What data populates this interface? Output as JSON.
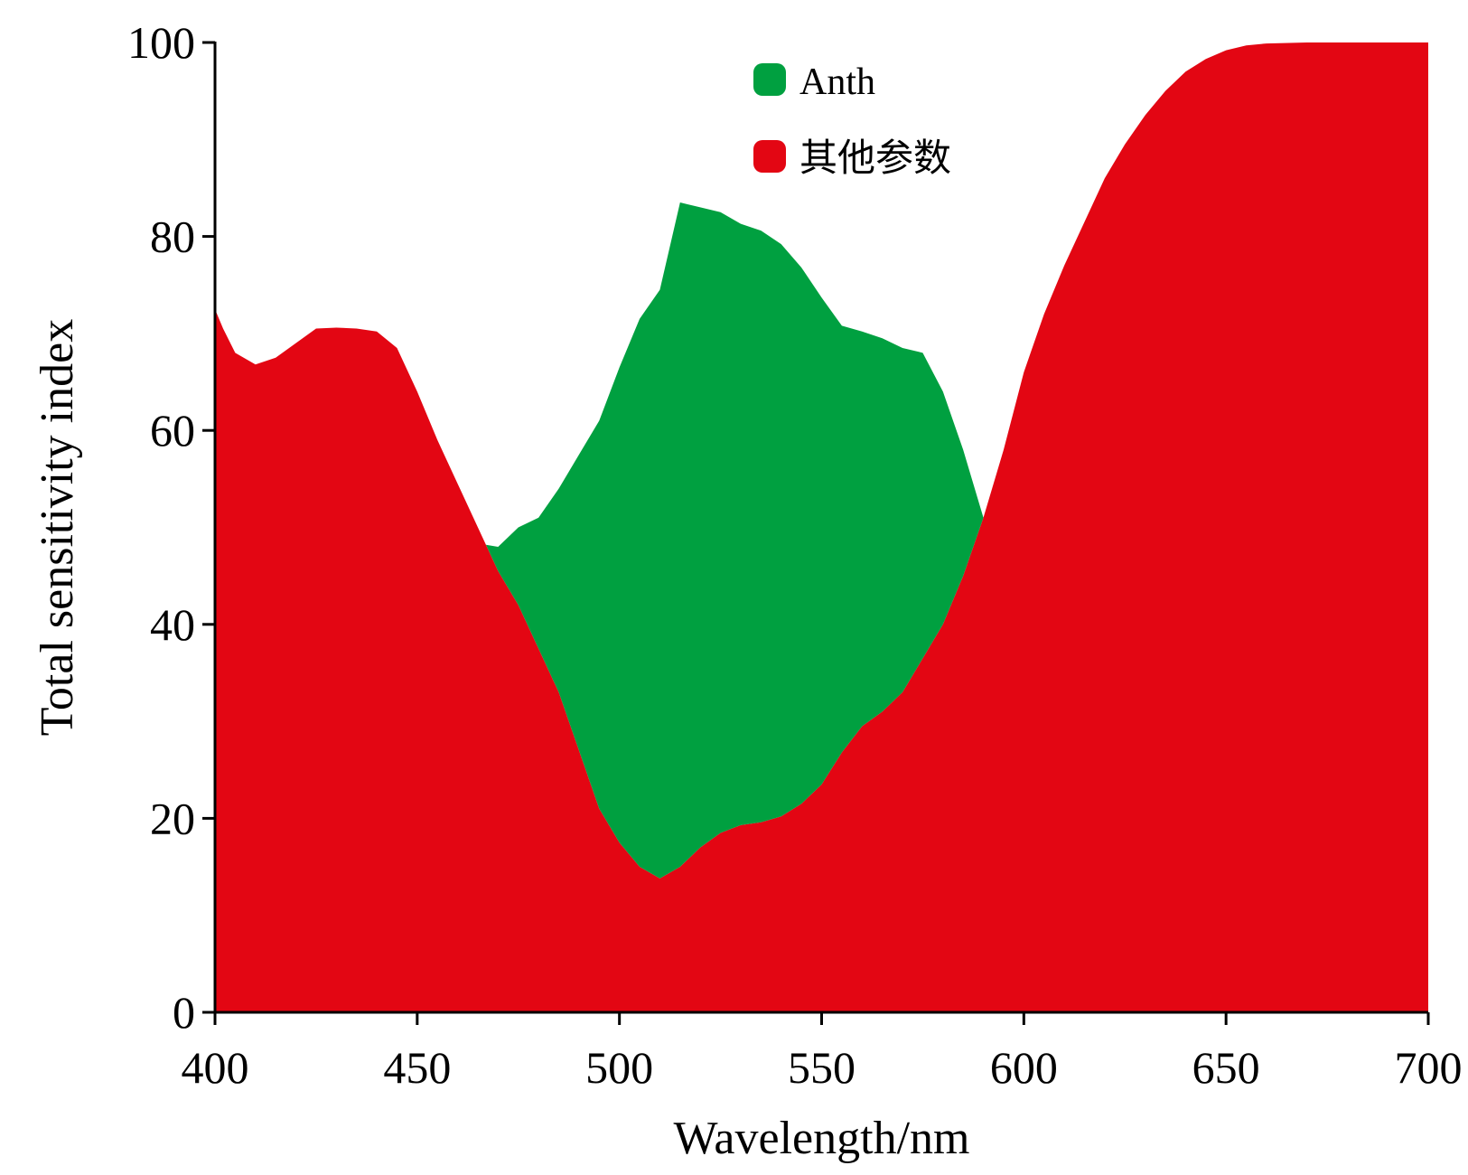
{
  "chart_data": {
    "type": "area",
    "xlabel": "Wavelength/nm",
    "ylabel": "Total sensitivity index",
    "xlim": [
      400,
      700
    ],
    "ylim": [
      0,
      100
    ],
    "x_ticks": [
      "400",
      "450",
      "500",
      "550",
      "600",
      "650",
      "700"
    ],
    "y_ticks": [
      "0",
      "20",
      "40",
      "60",
      "80",
      "100"
    ],
    "legend_position": "top-center",
    "stacked": true,
    "series": [
      {
        "name": "其他参数",
        "color": "#e30613",
        "points": [
          [
            400,
            72.5
          ],
          [
            402,
            70.5
          ],
          [
            405,
            68
          ],
          [
            410,
            66.8
          ],
          [
            415,
            67.5
          ],
          [
            420,
            69
          ],
          [
            425,
            70.5
          ],
          [
            430,
            70.6
          ],
          [
            435,
            70.5
          ],
          [
            440,
            70.2
          ],
          [
            445,
            68.5
          ],
          [
            450,
            64
          ],
          [
            455,
            59
          ],
          [
            460,
            54.5
          ],
          [
            465,
            50
          ],
          [
            470,
            45.5
          ],
          [
            475,
            42
          ],
          [
            480,
            37.5
          ],
          [
            485,
            33
          ],
          [
            490,
            27
          ],
          [
            495,
            21
          ],
          [
            500,
            17.5
          ],
          [
            505,
            15
          ],
          [
            510,
            13.8
          ],
          [
            515,
            15
          ],
          [
            520,
            17
          ],
          [
            525,
            18.5
          ],
          [
            530,
            19.3
          ],
          [
            535,
            19.6
          ],
          [
            540,
            20.2
          ],
          [
            545,
            21.5
          ],
          [
            550,
            23.5
          ],
          [
            555,
            26.8
          ],
          [
            560,
            29.5
          ],
          [
            565,
            31
          ],
          [
            570,
            33
          ],
          [
            575,
            36.5
          ],
          [
            580,
            40
          ],
          [
            585,
            45
          ],
          [
            590,
            51
          ],
          [
            595,
            58
          ],
          [
            600,
            66
          ],
          [
            605,
            72
          ],
          [
            610,
            77
          ],
          [
            615,
            81.5
          ],
          [
            620,
            86
          ],
          [
            625,
            89.5
          ],
          [
            630,
            92.5
          ],
          [
            635,
            95
          ],
          [
            640,
            97
          ],
          [
            645,
            98.3
          ],
          [
            650,
            99.2
          ],
          [
            655,
            99.7
          ],
          [
            660,
            99.9
          ],
          [
            670,
            100
          ],
          [
            680,
            100
          ],
          [
            690,
            100
          ],
          [
            700,
            100
          ]
        ]
      },
      {
        "name": "Anth",
        "color": "#00a040",
        "points": [
          [
            467,
            0
          ],
          [
            470,
            2.5
          ],
          [
            475,
            8
          ],
          [
            480,
            13.5
          ],
          [
            485,
            21
          ],
          [
            490,
            30.5
          ],
          [
            495,
            40
          ],
          [
            500,
            49
          ],
          [
            505,
            56.5
          ],
          [
            510,
            60.7
          ],
          [
            515,
            68.5
          ],
          [
            520,
            66
          ],
          [
            525,
            64
          ],
          [
            530,
            62
          ],
          [
            535,
            61
          ],
          [
            540,
            59
          ],
          [
            545,
            55.3
          ],
          [
            550,
            50.2
          ],
          [
            555,
            44
          ],
          [
            560,
            40.7
          ],
          [
            565,
            38.5
          ],
          [
            570,
            35.5
          ],
          [
            575,
            31.5
          ],
          [
            580,
            24
          ],
          [
            585,
            13
          ],
          [
            590,
            0
          ]
        ]
      }
    ]
  }
}
